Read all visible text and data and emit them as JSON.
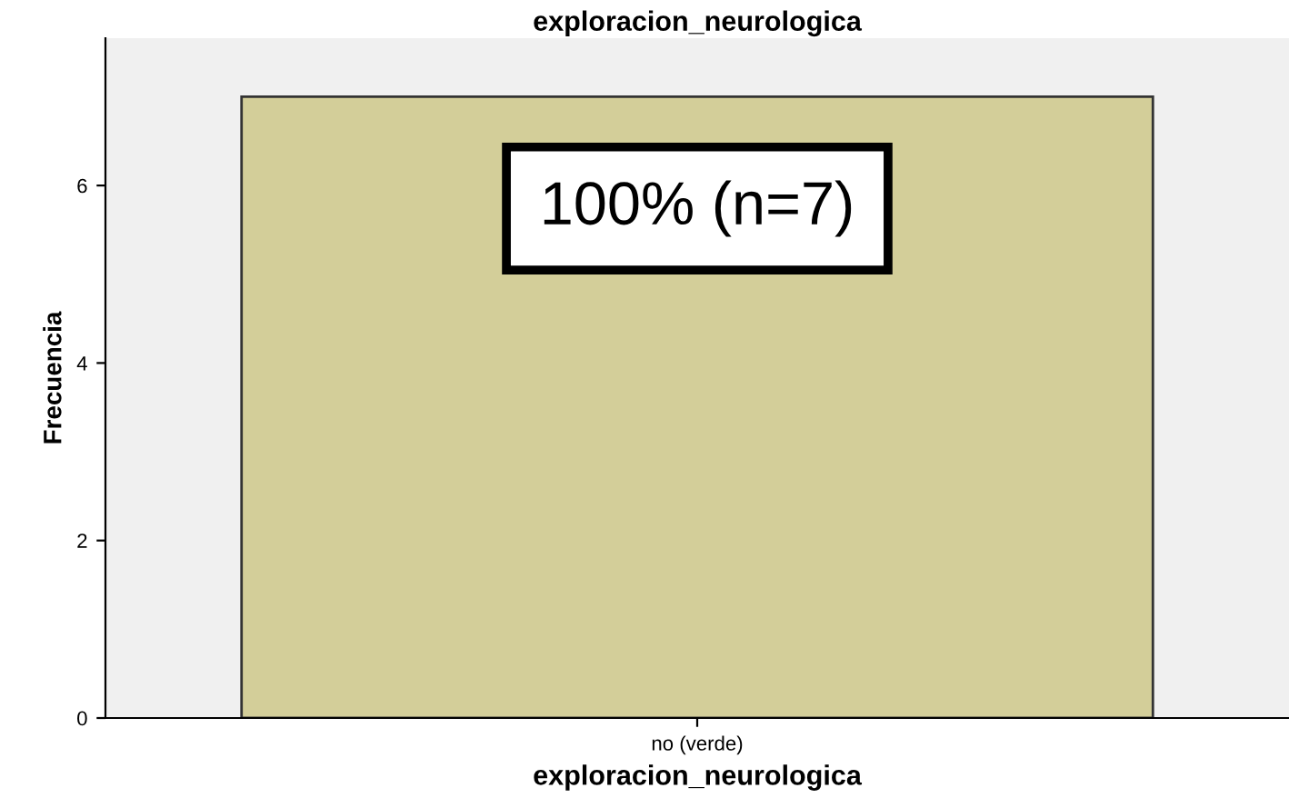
{
  "chart_data": {
    "type": "bar",
    "title": "exploracion_neurologica",
    "xlabel": "exploracion_neurologica",
    "ylabel": "Frecuencia",
    "categories": [
      "no (verde)"
    ],
    "values": [
      7
    ],
    "color": "#d3ce99",
    "value_labels": [
      "100% (n=7)"
    ],
    "ylim": [
      0,
      7.66
    ],
    "yticks": [
      0,
      2,
      4,
      6
    ],
    "grid": false,
    "legend": false
  }
}
